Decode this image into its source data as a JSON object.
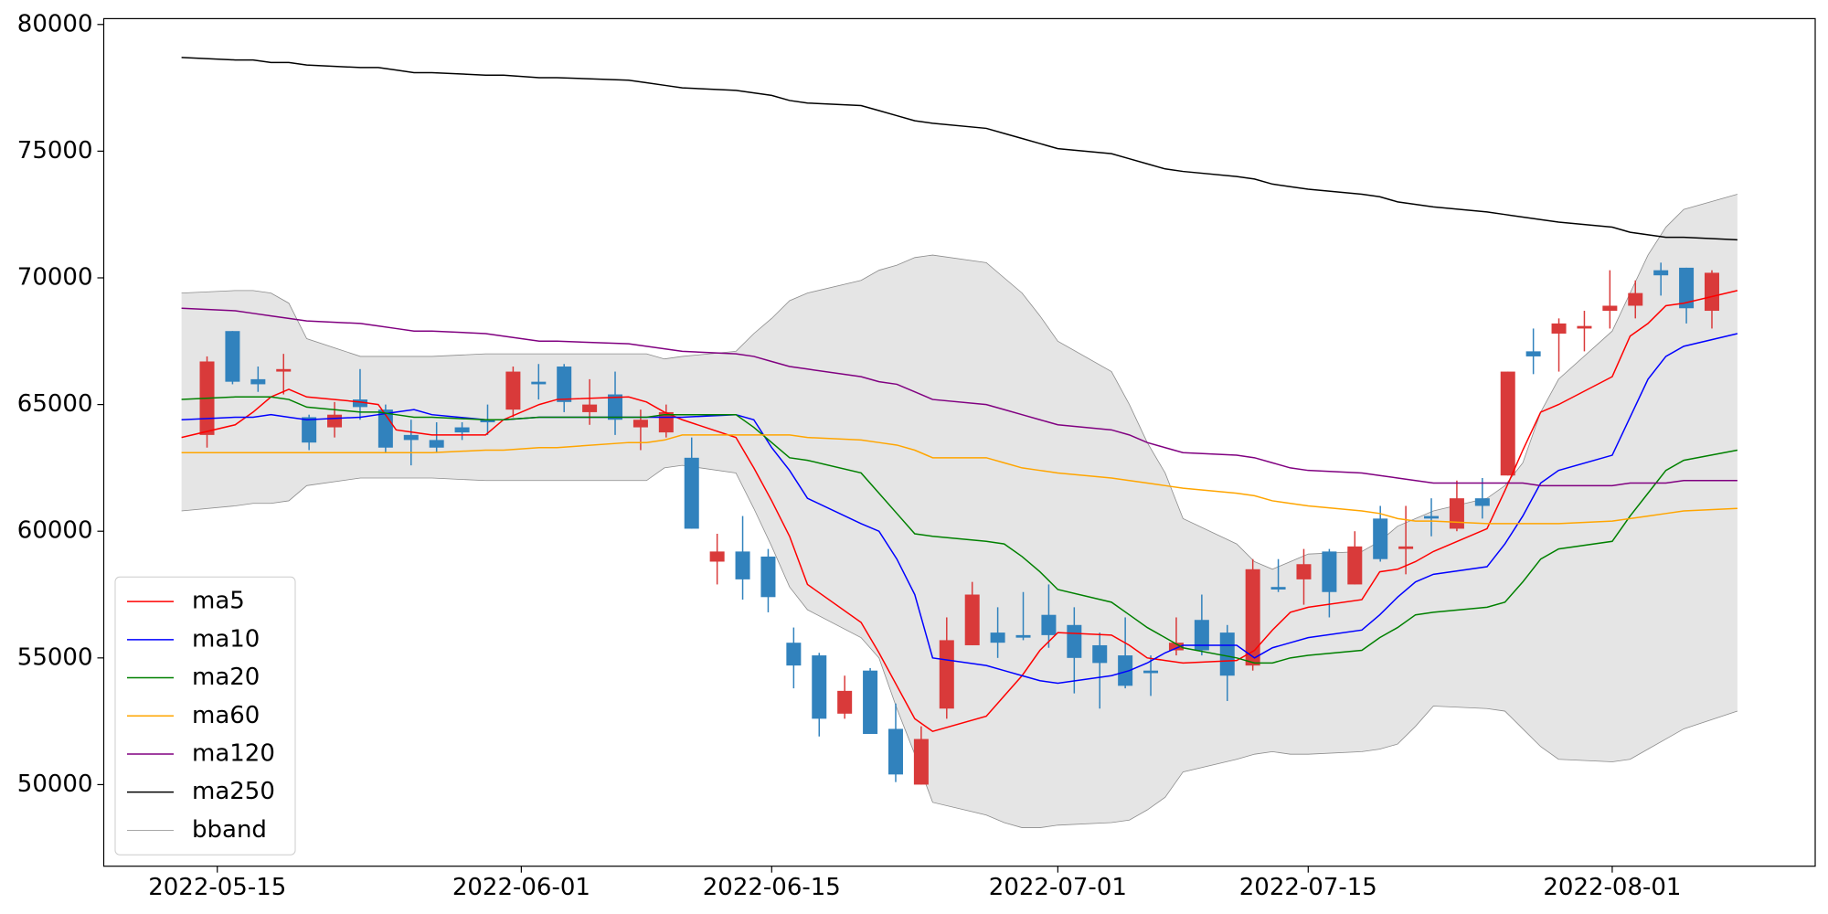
{
  "chart_data": {
    "type": "candlestick",
    "x": [
      "2022-05-13",
      "2022-05-16",
      "2022-05-17",
      "2022-05-18",
      "2022-05-19",
      "2022-05-20",
      "2022-05-23",
      "2022-05-24",
      "2022-05-25",
      "2022-05-26",
      "2022-05-27",
      "2022-05-30",
      "2022-05-31",
      "2022-06-02",
      "2022-06-03",
      "2022-06-07",
      "2022-06-08",
      "2022-06-09",
      "2022-06-10",
      "2022-06-13",
      "2022-06-14",
      "2022-06-15",
      "2022-06-16",
      "2022-06-17",
      "2022-06-20",
      "2022-06-21",
      "2022-06-22",
      "2022-06-23",
      "2022-06-24",
      "2022-06-27",
      "2022-06-28",
      "2022-06-29",
      "2022-06-30",
      "2022-07-01",
      "2022-07-04",
      "2022-07-05",
      "2022-07-06",
      "2022-07-07",
      "2022-07-08",
      "2022-07-11",
      "2022-07-12",
      "2022-07-13",
      "2022-07-14",
      "2022-07-15",
      "2022-07-18",
      "2022-07-19",
      "2022-07-20",
      "2022-07-21",
      "2022-07-22",
      "2022-07-25",
      "2022-07-26",
      "2022-07-27",
      "2022-07-28",
      "2022-07-29",
      "2022-08-01",
      "2022-08-02",
      "2022-08-03",
      "2022-08-04",
      "2022-08-05",
      "2022-08-08"
    ],
    "open": [
      63800,
      67900,
      66000,
      66300,
      64500,
      64100,
      65200,
      64800,
      63800,
      63600,
      64100,
      64400,
      64800,
      65900,
      66500,
      64700,
      65400,
      64100,
      63900,
      62900,
      58800,
      59200,
      59000,
      55600,
      55100,
      52800,
      54500,
      52200,
      50000,
      53000,
      55500,
      56000,
      55900,
      56700,
      56300,
      55500,
      55100,
      54500,
      55300,
      56500,
      56000,
      54700,
      57800,
      58100,
      59200,
      57900,
      60500,
      59300,
      60600,
      60100,
      61300,
      62200,
      67100,
      67800,
      68000,
      68700,
      68900,
      70300,
      70400,
      68700
    ],
    "high": [
      66900,
      67900,
      66500,
      67000,
      64600,
      65100,
      66400,
      65000,
      64400,
      64300,
      64300,
      65000,
      66500,
      66600,
      66600,
      66000,
      66300,
      64800,
      65000,
      63700,
      59900,
      60600,
      59300,
      56200,
      55200,
      54300,
      54600,
      53200,
      52300,
      56600,
      58000,
      57000,
      57600,
      57900,
      57000,
      56000,
      56600,
      55100,
      56600,
      57500,
      56300,
      58900,
      58900,
      59300,
      59300,
      60000,
      61000,
      61000,
      61300,
      62000,
      62100,
      66300,
      68000,
      68400,
      68700,
      70300,
      69900,
      70600,
      70400,
      70300
    ],
    "low": [
      63300,
      65800,
      65500,
      65400,
      63200,
      63700,
      64400,
      63100,
      62600,
      63100,
      63600,
      63800,
      64500,
      65200,
      64700,
      64200,
      63800,
      63200,
      63700,
      60100,
      57900,
      57300,
      56800,
      53800,
      51900,
      52600,
      52000,
      50100,
      50000,
      52600,
      55500,
      55000,
      55700,
      55400,
      53600,
      53000,
      53800,
      53500,
      55100,
      55100,
      53300,
      54500,
      57600,
      57100,
      56600,
      57900,
      58800,
      58300,
      59800,
      60000,
      60500,
      62200,
      66200,
      66300,
      67100,
      68000,
      68400,
      69300,
      68200,
      68000
    ],
    "close": [
      66700,
      65900,
      65800,
      66400,
      63500,
      64600,
      64900,
      63300,
      63600,
      63300,
      63900,
      64300,
      66300,
      65800,
      65100,
      65000,
      64400,
      64400,
      64700,
      60100,
      59200,
      58100,
      57400,
      54700,
      52600,
      53700,
      52000,
      50400,
      51800,
      55700,
      57500,
      55600,
      55800,
      55900,
      55000,
      54800,
      53900,
      54400,
      55600,
      55300,
      54300,
      58500,
      57700,
      58700,
      57600,
      59400,
      58900,
      59400,
      60500,
      61300,
      61000,
      66300,
      66900,
      68200,
      68100,
      68900,
      69400,
      70100,
      68800,
      70200
    ],
    "up_color": "#d93a3a",
    "down_color": "#3182bd",
    "series": [
      {
        "name": "ma5",
        "color": "#ff0000",
        "values": [
          63700,
          64200,
          64700,
          65300,
          65600,
          65300,
          65100,
          65000,
          64000,
          63900,
          63800,
          63800,
          64400,
          65000,
          65200,
          65300,
          65100,
          64700,
          64400,
          63700,
          62500,
          61200,
          59800,
          57900,
          56400,
          55200,
          53900,
          52600,
          52100,
          52700,
          53500,
          54300,
          55300,
          56000,
          55900,
          55500,
          55000,
          54900,
          54800,
          54900,
          55300,
          56100,
          56800,
          57000,
          57300,
          58400,
          58500,
          58800,
          59200,
          60100,
          61600,
          63200,
          64700,
          65000,
          66100,
          67700,
          68200,
          68900,
          69000,
          69500
        ]
      },
      {
        "name": "ma10",
        "color": "#0000ff",
        "values": [
          64400,
          64500,
          64500,
          64600,
          64500,
          64400,
          64500,
          64600,
          64700,
          64800,
          64600,
          64400,
          64400,
          64500,
          64500,
          64500,
          64500,
          64500,
          64500,
          64600,
          64400,
          63300,
          62400,
          61300,
          60300,
          60000,
          58900,
          57500,
          55000,
          54700,
          54500,
          54300,
          54100,
          54000,
          54300,
          54500,
          54800,
          55200,
          55500,
          55500,
          55000,
          55400,
          55600,
          55800,
          56100,
          56700,
          57400,
          58000,
          58300,
          58600,
          59500,
          60600,
          61900,
          62400,
          63000,
          64500,
          66000,
          66900,
          67300,
          67800
        ]
      },
      {
        "name": "ma20",
        "color": "#008000",
        "values": [
          65200,
          65300,
          65300,
          65300,
          65200,
          64900,
          64700,
          64700,
          64600,
          64500,
          64500,
          64400,
          64400,
          64500,
          64500,
          64500,
          64500,
          64600,
          64600,
          64600,
          64100,
          63500,
          62900,
          62800,
          62300,
          61500,
          60700,
          59900,
          59800,
          59600,
          59500,
          59000,
          58400,
          57700,
          57200,
          56700,
          56200,
          55800,
          55400,
          55000,
          54800,
          54800,
          55000,
          55100,
          55300,
          55800,
          56200,
          56700,
          56800,
          57000,
          57200,
          58000,
          58900,
          59300,
          59600,
          60600,
          61500,
          62400,
          62800,
          63200
        ]
      },
      {
        "name": "ma60",
        "color": "#ffa500",
        "values": [
          63100,
          63100,
          63100,
          63100,
          63100,
          63100,
          63100,
          63100,
          63100,
          63100,
          63100,
          63200,
          63200,
          63300,
          63300,
          63500,
          63500,
          63600,
          63800,
          63800,
          63800,
          63800,
          63800,
          63700,
          63600,
          63500,
          63400,
          63200,
          62900,
          62900,
          62700,
          62500,
          62400,
          62300,
          62100,
          62000,
          61900,
          61800,
          61700,
          61500,
          61400,
          61200,
          61100,
          61000,
          60800,
          60700,
          60500,
          60400,
          60400,
          60300,
          60300,
          60300,
          60300,
          60300,
          60400,
          60500,
          60600,
          60700,
          60800,
          60900
        ]
      },
      {
        "name": "ma120",
        "color": "#800080",
        "values": [
          68800,
          68700,
          68600,
          68500,
          68400,
          68300,
          68200,
          68100,
          68000,
          67900,
          67900,
          67800,
          67700,
          67500,
          67500,
          67400,
          67300,
          67200,
          67100,
          67000,
          66900,
          66700,
          66500,
          66400,
          66100,
          65900,
          65800,
          65500,
          65200,
          65000,
          64800,
          64600,
          64400,
          64200,
          64000,
          63800,
          63500,
          63300,
          63100,
          63000,
          62900,
          62700,
          62500,
          62400,
          62300,
          62200,
          62100,
          62000,
          61900,
          61900,
          61900,
          61900,
          61800,
          61800,
          61800,
          61900,
          61900,
          61900,
          62000,
          62000
        ]
      },
      {
        "name": "ma250",
        "color": "#000000",
        "values": [
          78700,
          78600,
          78600,
          78500,
          78500,
          78400,
          78300,
          78300,
          78200,
          78100,
          78100,
          78000,
          78000,
          77900,
          77900,
          77800,
          77700,
          77600,
          77500,
          77400,
          77300,
          77200,
          77000,
          76900,
          76800,
          76600,
          76400,
          76200,
          76100,
          75900,
          75700,
          75500,
          75300,
          75100,
          74900,
          74700,
          74500,
          74300,
          74200,
          74000,
          73900,
          73700,
          73600,
          73500,
          73300,
          73200,
          73000,
          72900,
          72800,
          72600,
          72500,
          72400,
          72300,
          72200,
          72000,
          71800,
          71700,
          71600,
          71600,
          71500
        ]
      }
    ],
    "bband": {
      "name": "bband",
      "color": "#8c8c8c",
      "fill": "#e5e5e5",
      "upper": [
        69400,
        69500,
        69500,
        69400,
        69000,
        67600,
        66900,
        66900,
        66900,
        66900,
        66900,
        67000,
        67000,
        67000,
        67000,
        67000,
        67000,
        66800,
        66900,
        67100,
        67800,
        68400,
        69100,
        69400,
        69900,
        70300,
        70500,
        70800,
        70900,
        70600,
        70000,
        69400,
        68500,
        67500,
        66300,
        65000,
        63500,
        62300,
        60500,
        59500,
        58800,
        58500,
        58800,
        59100,
        59200,
        59600,
        60200,
        60500,
        60800,
        61300,
        61800,
        62700,
        64700,
        66000,
        67900,
        69400,
        70900,
        72000,
        72700,
        73300
      ],
      "lower": [
        60800,
        61000,
        61100,
        61100,
        61200,
        61800,
        62100,
        62100,
        62100,
        62100,
        62100,
        62000,
        62000,
        62000,
        62000,
        62000,
        62000,
        62500,
        62600,
        62300,
        60900,
        59400,
        57800,
        56900,
        55800,
        55000,
        53000,
        51200,
        49300,
        48800,
        48500,
        48300,
        48300,
        48400,
        48500,
        48600,
        49000,
        49500,
        50500,
        51000,
        51200,
        51300,
        51200,
        51200,
        51300,
        51400,
        51600,
        52300,
        53100,
        53000,
        52900,
        52200,
        51500,
        51000,
        50900,
        51000,
        51400,
        51800,
        52200,
        52900
      ]
    },
    "xlim": [
      "2022-05-08T15:36",
      "2022-08-12T08:24"
    ],
    "ylim": [
      46780,
      80230
    ],
    "xticks": [
      "2022-05-15",
      "2022-06-01",
      "2022-06-15",
      "2022-07-01",
      "2022-07-15",
      "2022-08-01"
    ],
    "yticks": [
      50000,
      55000,
      60000,
      65000,
      70000,
      75000,
      80000
    ],
    "legend": "lower left"
  }
}
